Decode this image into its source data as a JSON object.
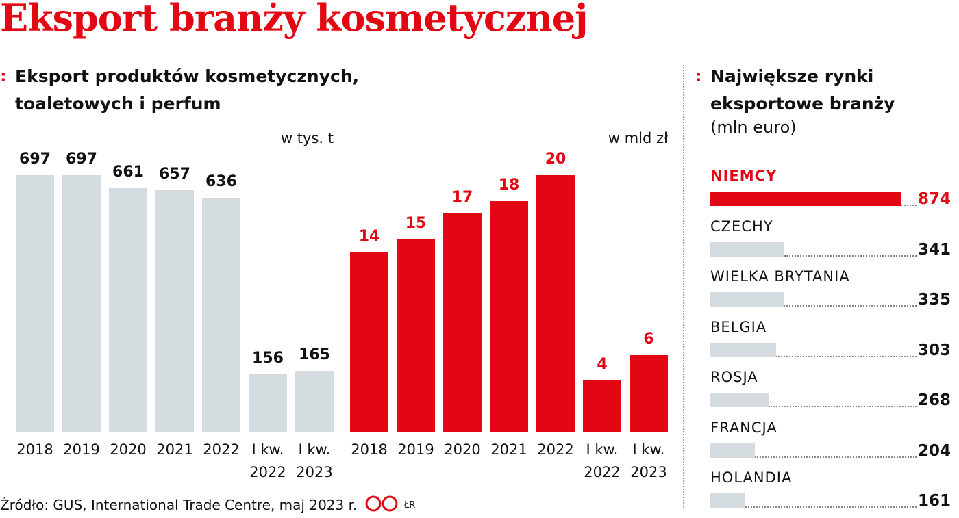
{
  "title": "Eksport branży kosmetycznej",
  "source": "Źródło: GUS, International Trade Centre, maj 2023 r.",
  "author": "ŁR",
  "chart_data": [
    {
      "type": "bar",
      "title": "Eksport produktów kosmetycznych, toaletowych i perfum",
      "unit": "w tys. t",
      "categories": [
        "2018",
        "2019",
        "2020",
        "2021",
        "2022",
        "I kw. 2022",
        "I kw. 2023"
      ],
      "values": [
        697,
        697,
        661,
        657,
        636,
        156,
        165
      ],
      "color": "#d5dcdf",
      "label_color": "#111111"
    },
    {
      "type": "bar",
      "unit": "w mld zł",
      "categories": [
        "2018",
        "2019",
        "2020",
        "2021",
        "2022",
        "I kw. 2022",
        "I kw. 2023"
      ],
      "values": [
        14,
        15,
        17,
        18,
        20,
        4,
        6
      ],
      "color": "#e30613",
      "label_color": "#e30613"
    },
    {
      "type": "hbar",
      "title": "Największe rynki eksportowe branży",
      "subtitle": "(mln euro)",
      "categories": [
        "NIEMCY",
        "CZECHY",
        "WIELKA BRYTANIA",
        "BELGIA",
        "ROSJA",
        "FRANCJA",
        "HOLANDIA"
      ],
      "values": [
        874,
        341,
        335,
        303,
        268,
        204,
        161
      ],
      "colors": [
        "#e30613",
        "#d5dcdf",
        "#d5dcdf",
        "#d5dcdf",
        "#d5dcdf",
        "#d5dcdf",
        "#d5dcdf"
      ],
      "label_colors": [
        "#e30613",
        "#111111",
        "#111111",
        "#111111",
        "#111111",
        "#111111",
        "#111111"
      ]
    }
  ]
}
